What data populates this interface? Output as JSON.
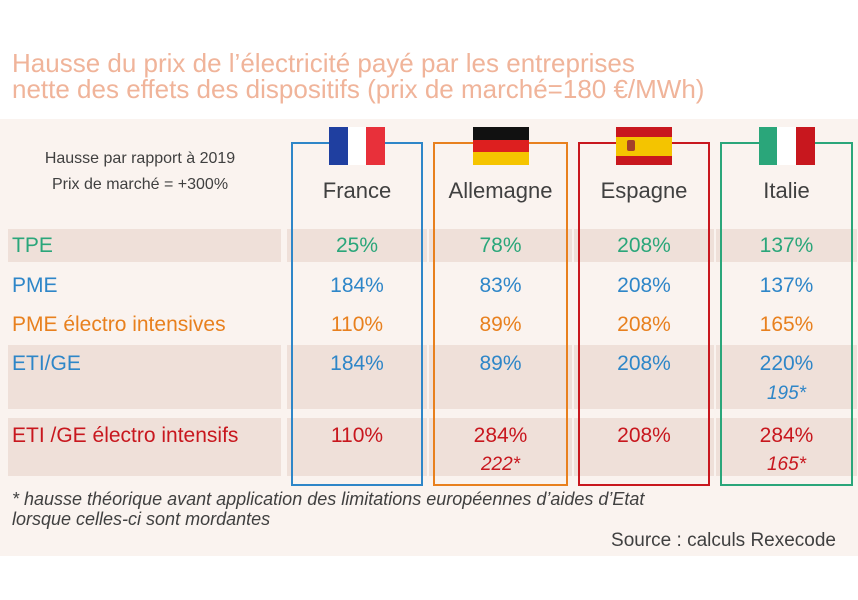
{
  "title_line1": "Hausse du prix de l’électricité payé par les entreprises",
  "title_line2": "nette des effets des dispositifs (prix de marché=180 €/MWh)",
  "note_line1": "Hausse par rapport à 2019",
  "note_line2": "Prix de marché = +300%",
  "footnote_line1": "* hausse théorique avant application des limitations européennes d’aides d’Etat",
  "footnote_line2": "lorsque celles-ci sont mordantes",
  "source": "Source : calculs Rexecode",
  "colors": {
    "title": "#f0b49a",
    "tpe": "#2aa67a",
    "pme": "#2e86c8",
    "pme_electro": "#e8801e",
    "eti": "#2e86c8",
    "eti_electro": "#c8171e",
    "box_france": "#2e86c8",
    "box_allemagne": "#e8801e",
    "box_espagne": "#c8171e",
    "box_italie": "#2aa67a"
  },
  "chart_data": {
    "type": "table",
    "columns": [
      "France",
      "Allemagne",
      "Espagne",
      "Italie"
    ],
    "rows": [
      {
        "label": "TPE",
        "values": [
          "25%",
          "78%",
          "208%",
          "137%"
        ],
        "notes": [
          "",
          "",
          "",
          ""
        ]
      },
      {
        "label": "PME",
        "values": [
          "184%",
          "83%",
          "208%",
          "137%"
        ],
        "notes": [
          "",
          "",
          "",
          ""
        ]
      },
      {
        "label": "PME électro intensives",
        "values": [
          "110%",
          "89%",
          "208%",
          "165%"
        ],
        "notes": [
          "",
          "",
          "",
          ""
        ]
      },
      {
        "label": "ETI/GE",
        "values": [
          "184%",
          "89%",
          "208%",
          "220%"
        ],
        "notes": [
          "",
          "",
          "",
          "195*"
        ]
      },
      {
        "label": "ETI /GE électro intensifs",
        "values": [
          "110%",
          "284%",
          "208%",
          "284%"
        ],
        "notes": [
          "",
          "222*",
          "",
          "165*"
        ]
      }
    ]
  }
}
